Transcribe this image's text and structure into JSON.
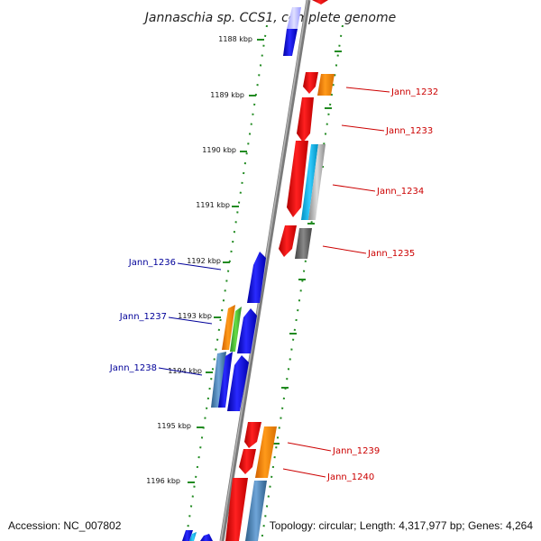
{
  "title": "Jannaschia sp. CCS1, complete genome",
  "accession_label": "Accession: NC_007802",
  "topology_label": "Topology: circular; Length: 4,317,977 bp; Genes: 4,264",
  "ticks": [
    "1188 kbp",
    "1189 kbp",
    "1190 kbp",
    "1191 kbp",
    "1192 kbp",
    "1193 kbp",
    "1194 kbp",
    "1195 kbp",
    "1196 kbp"
  ],
  "gene_labels_right": [
    "Jann_1232",
    "Jann_1233",
    "Jann_1234",
    "Jann_1235",
    "Jann_1239",
    "Jann_1240"
  ],
  "gene_labels_left": [
    "Jann_1236",
    "Jann_1237",
    "Jann_1238"
  ],
  "colors": {
    "forward_label": "#cc0000",
    "reverse_label": "#000099",
    "backbone": "#808080",
    "ticks": "#228b22"
  }
}
